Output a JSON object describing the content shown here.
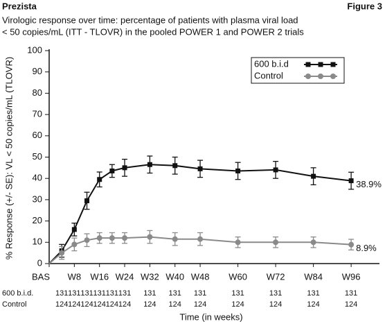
{
  "chart_data": {
    "type": "line",
    "header_left": "Prezista",
    "header_right": "Figure 3",
    "title": "Virologic response over time: percentage of patients with plasma viral load",
    "subtitle": "< 50 copies/mL (ITT - TLOVR) in the pooled POWER 1 and POWER 2 trials",
    "ylabel": "% Response (+/- SE): VL < 50 copies/mL (TLOVR)",
    "xlabel": "Time (in weeks)",
    "x": [
      0,
      4,
      8,
      12,
      16,
      20,
      24,
      32,
      40,
      48,
      60,
      72,
      84,
      96
    ],
    "xlim": [
      0,
      105
    ],
    "xticks": [
      {
        "value": 0,
        "label": "BAS"
      },
      {
        "value": 8,
        "label": "W8"
      },
      {
        "value": 16,
        "label": "W16"
      },
      {
        "value": 24,
        "label": "W24"
      },
      {
        "value": 32,
        "label": "W32"
      },
      {
        "value": 40,
        "label": "W40"
      },
      {
        "value": 48,
        "label": "W48"
      },
      {
        "value": 60,
        "label": "W60"
      },
      {
        "value": 72,
        "label": "W72"
      },
      {
        "value": 84,
        "label": "W84"
      },
      {
        "value": 96,
        "label": "W96"
      }
    ],
    "ylim": [
      0,
      100
    ],
    "yticks": [
      0,
      10,
      20,
      30,
      40,
      50,
      60,
      70,
      80,
      90,
      100
    ],
    "grid": false,
    "legend": "upper right",
    "series": [
      {
        "name": "600 b.i.d",
        "color": "#111111",
        "marker": "square",
        "values": [
          0,
          6,
          16,
          29.5,
          39.5,
          43.5,
          45,
          46.5,
          46,
          44.5,
          43.5,
          44,
          41,
          38.9
        ],
        "errors": [
          null,
          3,
          3,
          4,
          3.5,
          3,
          4,
          4,
          4,
          4,
          4,
          4,
          4,
          4
        ],
        "value_labels": [
          null,
          null,
          null,
          null,
          null,
          null,
          null,
          null,
          null,
          null,
          null,
          null,
          null,
          "38.9%"
        ]
      },
      {
        "name": "Control",
        "color": "#8a8a8a",
        "marker": "circle",
        "values": [
          0,
          5,
          9,
          11,
          12,
          12,
          12,
          12.5,
          11.5,
          11.5,
          10,
          10,
          10,
          8.9
        ],
        "errors": [
          null,
          3,
          3,
          3,
          2.5,
          2.5,
          2.5,
          3,
          3,
          3,
          2.5,
          2.5,
          2.5,
          2.5
        ],
        "value_labels": [
          null,
          null,
          null,
          null,
          null,
          null,
          null,
          null,
          null,
          null,
          null,
          null,
          null,
          "8.9%"
        ]
      }
    ],
    "counts": [
      {
        "label": "600 b.i.d.",
        "values": [
          null,
          131,
          131,
          131,
          131,
          131,
          131,
          131,
          131,
          131,
          131,
          131,
          131,
          131
        ]
      },
      {
        "label": "Control",
        "values": [
          null,
          124,
          124,
          124,
          124,
          124,
          124,
          124,
          124,
          124,
          124,
          124,
          124,
          124
        ]
      }
    ]
  }
}
